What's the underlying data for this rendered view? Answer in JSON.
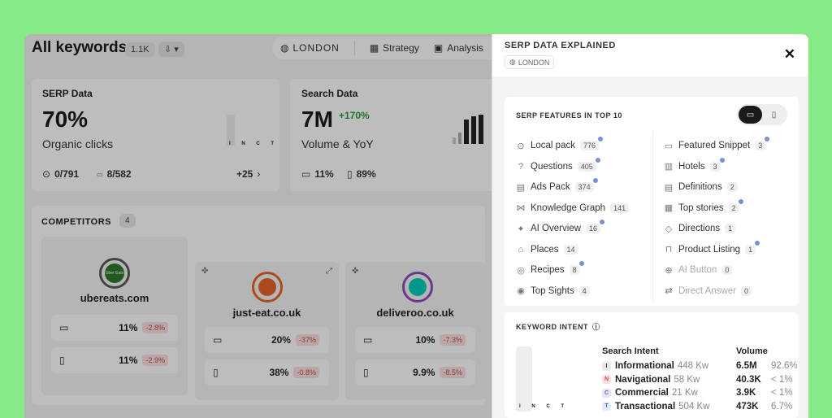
{
  "header": {
    "title": "All keywords",
    "count": "1.1K",
    "location": "LONDON",
    "strategy": "Strategy",
    "analysis": "Analysis"
  },
  "serp_card": {
    "label": "SERP Data",
    "value": "70%",
    "sub": "Organic clicks",
    "stat1": "0/791",
    "stat2": "8/582",
    "more": "+25",
    "bar_letters": "I N C T"
  },
  "search_card": {
    "label": "Search Data",
    "value": "7M",
    "growth": "+170%",
    "sub": "Volume & YoY",
    "desktop": "11%",
    "mobile": "89%"
  },
  "competitors": {
    "label": "COMPETITORS",
    "count": "4",
    "items": [
      {
        "name": "ubereats.com",
        "logo_text": "Uber Eats",
        "color": "#5a5a5a",
        "desktop": "11%",
        "desktop_change": "-2.8%",
        "mobile": "11%",
        "mobile_change": "-2.9%"
      },
      {
        "name": "just-eat.co.uk",
        "color": "#e8642b",
        "desktop": "20%",
        "desktop_change": "-37%",
        "mobile": "38%",
        "mobile_change": "-0.8%"
      },
      {
        "name": "deliveroo.co.uk",
        "color": "#00ccbc",
        "desktop": "10%",
        "desktop_change": "-7.3%",
        "mobile": "9.9%",
        "mobile_change": "-8.5%"
      }
    ]
  },
  "panel": {
    "title": "SERP DATA EXPLAINED",
    "location": "LONDON",
    "features_title": "SERP FEATURES IN TOP 10",
    "left": [
      {
        "icon": "⊙",
        "label": "Local pack",
        "count": "776",
        "dot": true
      },
      {
        "icon": "?",
        "label": "Questions",
        "count": "405",
        "dot": true
      },
      {
        "icon": "▤",
        "label": "Ads Pack",
        "count": "374",
        "dot": true
      },
      {
        "icon": "⋈",
        "label": "Knowledge Graph",
        "count": "141",
        "dot": false
      },
      {
        "icon": "✦",
        "label": "AI Overview",
        "count": "16",
        "dot": true
      },
      {
        "icon": "⌂",
        "label": "Places",
        "count": "14",
        "dot": false
      },
      {
        "icon": "◎",
        "label": "Recipes",
        "count": "8",
        "dot": true
      },
      {
        "icon": "◉",
        "label": "Top Sights",
        "count": "4",
        "dot": false
      }
    ],
    "right": [
      {
        "icon": "▭",
        "label": "Featured Snippet",
        "count": "3",
        "dot": true,
        "dim": false
      },
      {
        "icon": "▥",
        "label": "Hotels",
        "count": "3",
        "dot": true,
        "dim": false
      },
      {
        "icon": "▤",
        "label": "Definitions",
        "count": "2",
        "dot": false,
        "dim": false
      },
      {
        "icon": "▦",
        "label": "Top stories",
        "count": "2",
        "dot": true,
        "dim": false
      },
      {
        "icon": "◇",
        "label": "Directions",
        "count": "1",
        "dot": false,
        "dim": false
      },
      {
        "icon": "⊓",
        "label": "Product Listing",
        "count": "1",
        "dot": true,
        "dim": false
      },
      {
        "icon": "⊕",
        "label": "AI Button",
        "count": "0",
        "dot": false,
        "dim": true
      },
      {
        "icon": "⇄",
        "label": "Direct Answer",
        "count": "0",
        "dot": false,
        "dim": true
      }
    ],
    "intent_title": "KEYWORD INTENT",
    "intent_head": "Search Intent",
    "volume_head": "Volume",
    "intents": [
      {
        "badge": "I",
        "label": "Informational",
        "kw": "448 Kw",
        "vol": "6.5M",
        "pct": "92.6%",
        "color": "#e8e8e8",
        "tc": "#333"
      },
      {
        "badge": "N",
        "label": "Navigational",
        "kw": "58 Kw",
        "vol": "40.3K",
        "pct": "< 1%",
        "color": "#fde0e0",
        "tc": "#d04848"
      },
      {
        "badge": "C",
        "label": "Commercial",
        "kw": "21 Kw",
        "vol": "3.9K",
        "pct": "< 1%",
        "color": "#e8e3f6",
        "tc": "#6b5bb8"
      },
      {
        "badge": "T",
        "label": "Transactional",
        "kw": "504 Kw",
        "vol": "473K",
        "pct": "6.7%",
        "color": "#e3ecf8",
        "tc": "#4a6fa8"
      }
    ]
  }
}
